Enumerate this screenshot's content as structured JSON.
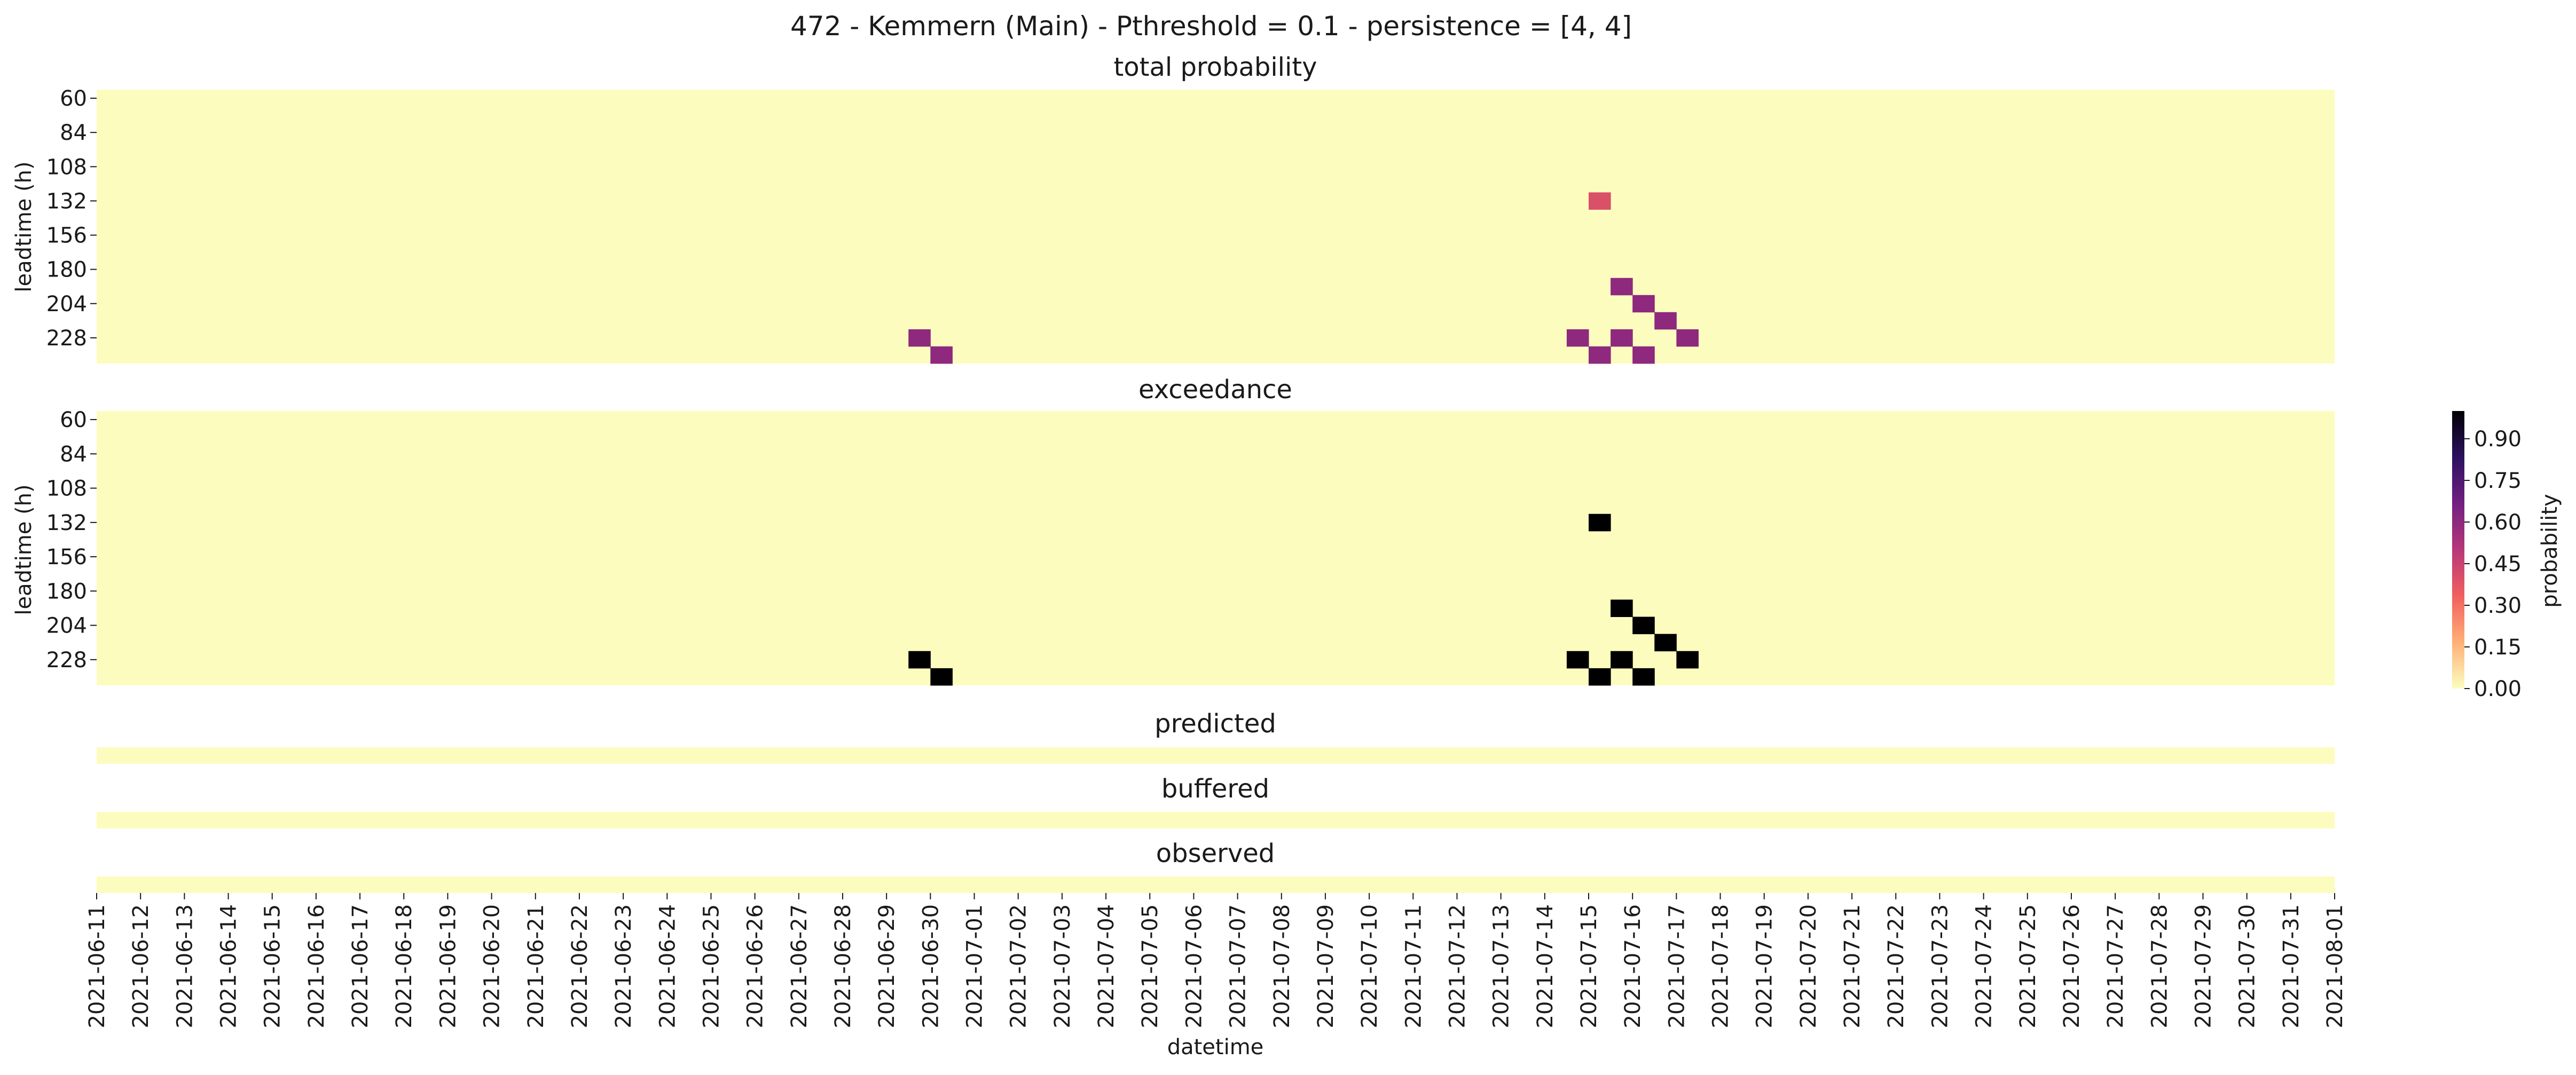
{
  "figure": {
    "title": "472 - Kemmern (Main) - Pthreshold = 0.1 - persistence = [4, 4]"
  },
  "colors": {
    "background": "#fcfcbf",
    "cmap_stops": [
      "#fcfdbf",
      "#feb078",
      "#f1605d",
      "#b73779",
      "#721f81",
      "#2c115f",
      "#000004"
    ]
  },
  "chart_data": {
    "type": "heatmap",
    "xlabel": "datetime",
    "x_tick_labels": [
      "2021-06-11",
      "2021-06-12",
      "2021-06-13",
      "2021-06-14",
      "2021-06-15",
      "2021-06-16",
      "2021-06-17",
      "2021-06-18",
      "2021-06-19",
      "2021-06-20",
      "2021-06-21",
      "2021-06-22",
      "2021-06-23",
      "2021-06-24",
      "2021-06-25",
      "2021-06-26",
      "2021-06-27",
      "2021-06-28",
      "2021-06-29",
      "2021-06-30",
      "2021-07-01",
      "2021-07-02",
      "2021-07-03",
      "2021-07-04",
      "2021-07-05",
      "2021-07-06",
      "2021-07-07",
      "2021-07-08",
      "2021-07-09",
      "2021-07-10",
      "2021-07-11",
      "2021-07-12",
      "2021-07-13",
      "2021-07-14",
      "2021-07-15",
      "2021-07-16",
      "2021-07-17",
      "2021-07-18",
      "2021-07-19",
      "2021-07-20",
      "2021-07-21",
      "2021-07-22",
      "2021-07-23",
      "2021-07-24",
      "2021-07-25",
      "2021-07-26",
      "2021-07-27",
      "2021-07-28",
      "2021-07-29",
      "2021-07-30",
      "2021-07-31",
      "2021-08-01"
    ],
    "leadtime_rows": [
      60,
      72,
      84,
      96,
      108,
      120,
      132,
      144,
      156,
      168,
      180,
      192,
      204,
      216,
      228,
      240
    ],
    "ytick_labels": [
      "60",
      "84",
      "108",
      "132",
      "156",
      "180",
      "204",
      "228"
    ],
    "ylabel": "leadtime (h)",
    "colorbar": {
      "label": "probability",
      "ticks": [
        "0.00",
        "0.15",
        "0.30",
        "0.45",
        "0.60",
        "0.75",
        "0.90"
      ],
      "range": [
        0,
        1
      ]
    },
    "panels": [
      {
        "title": "total probability",
        "value_scale": "probability",
        "cells": [
          {
            "datetime": "2021-07-15 00:00",
            "leadtime": 132,
            "value": 0.4
          },
          {
            "datetime": "2021-07-15 12:00",
            "leadtime": 192,
            "value": 0.6
          },
          {
            "datetime": "2021-07-16 00:00",
            "leadtime": 204,
            "value": 0.6
          },
          {
            "datetime": "2021-07-16 12:00",
            "leadtime": 216,
            "value": 0.6
          },
          {
            "datetime": "2021-06-29 12:00",
            "leadtime": 228,
            "value": 0.6
          },
          {
            "datetime": "2021-07-14 12:00",
            "leadtime": 228,
            "value": 0.6
          },
          {
            "datetime": "2021-07-15 12:00",
            "leadtime": 228,
            "value": 0.6
          },
          {
            "datetime": "2021-07-17 00:00",
            "leadtime": 228,
            "value": 0.6
          },
          {
            "datetime": "2021-06-30 00:00",
            "leadtime": 240,
            "value": 0.6
          },
          {
            "datetime": "2021-07-15 00:00",
            "leadtime": 240,
            "value": 0.6
          },
          {
            "datetime": "2021-07-16 00:00",
            "leadtime": 240,
            "value": 0.6
          }
        ]
      },
      {
        "title": "exceedance",
        "value_scale": "binary",
        "cells": [
          {
            "datetime": "2021-07-15 00:00",
            "leadtime": 132,
            "value": 1
          },
          {
            "datetime": "2021-07-15 12:00",
            "leadtime": 192,
            "value": 1
          },
          {
            "datetime": "2021-07-16 00:00",
            "leadtime": 204,
            "value": 1
          },
          {
            "datetime": "2021-07-16 12:00",
            "leadtime": 216,
            "value": 1
          },
          {
            "datetime": "2021-06-29 12:00",
            "leadtime": 228,
            "value": 1
          },
          {
            "datetime": "2021-07-14 12:00",
            "leadtime": 228,
            "value": 1
          },
          {
            "datetime": "2021-07-15 12:00",
            "leadtime": 228,
            "value": 1
          },
          {
            "datetime": "2021-07-17 00:00",
            "leadtime": 228,
            "value": 1
          },
          {
            "datetime": "2021-06-30 00:00",
            "leadtime": 240,
            "value": 1
          },
          {
            "datetime": "2021-07-15 00:00",
            "leadtime": 240,
            "value": 1
          },
          {
            "datetime": "2021-07-16 00:00",
            "leadtime": 240,
            "value": 1
          }
        ]
      },
      {
        "title": "predicted",
        "value_scale": "binary",
        "cells": []
      },
      {
        "title": "buffered",
        "value_scale": "binary",
        "cells": []
      },
      {
        "title": "observed",
        "value_scale": "binary",
        "cells": []
      }
    ]
  }
}
